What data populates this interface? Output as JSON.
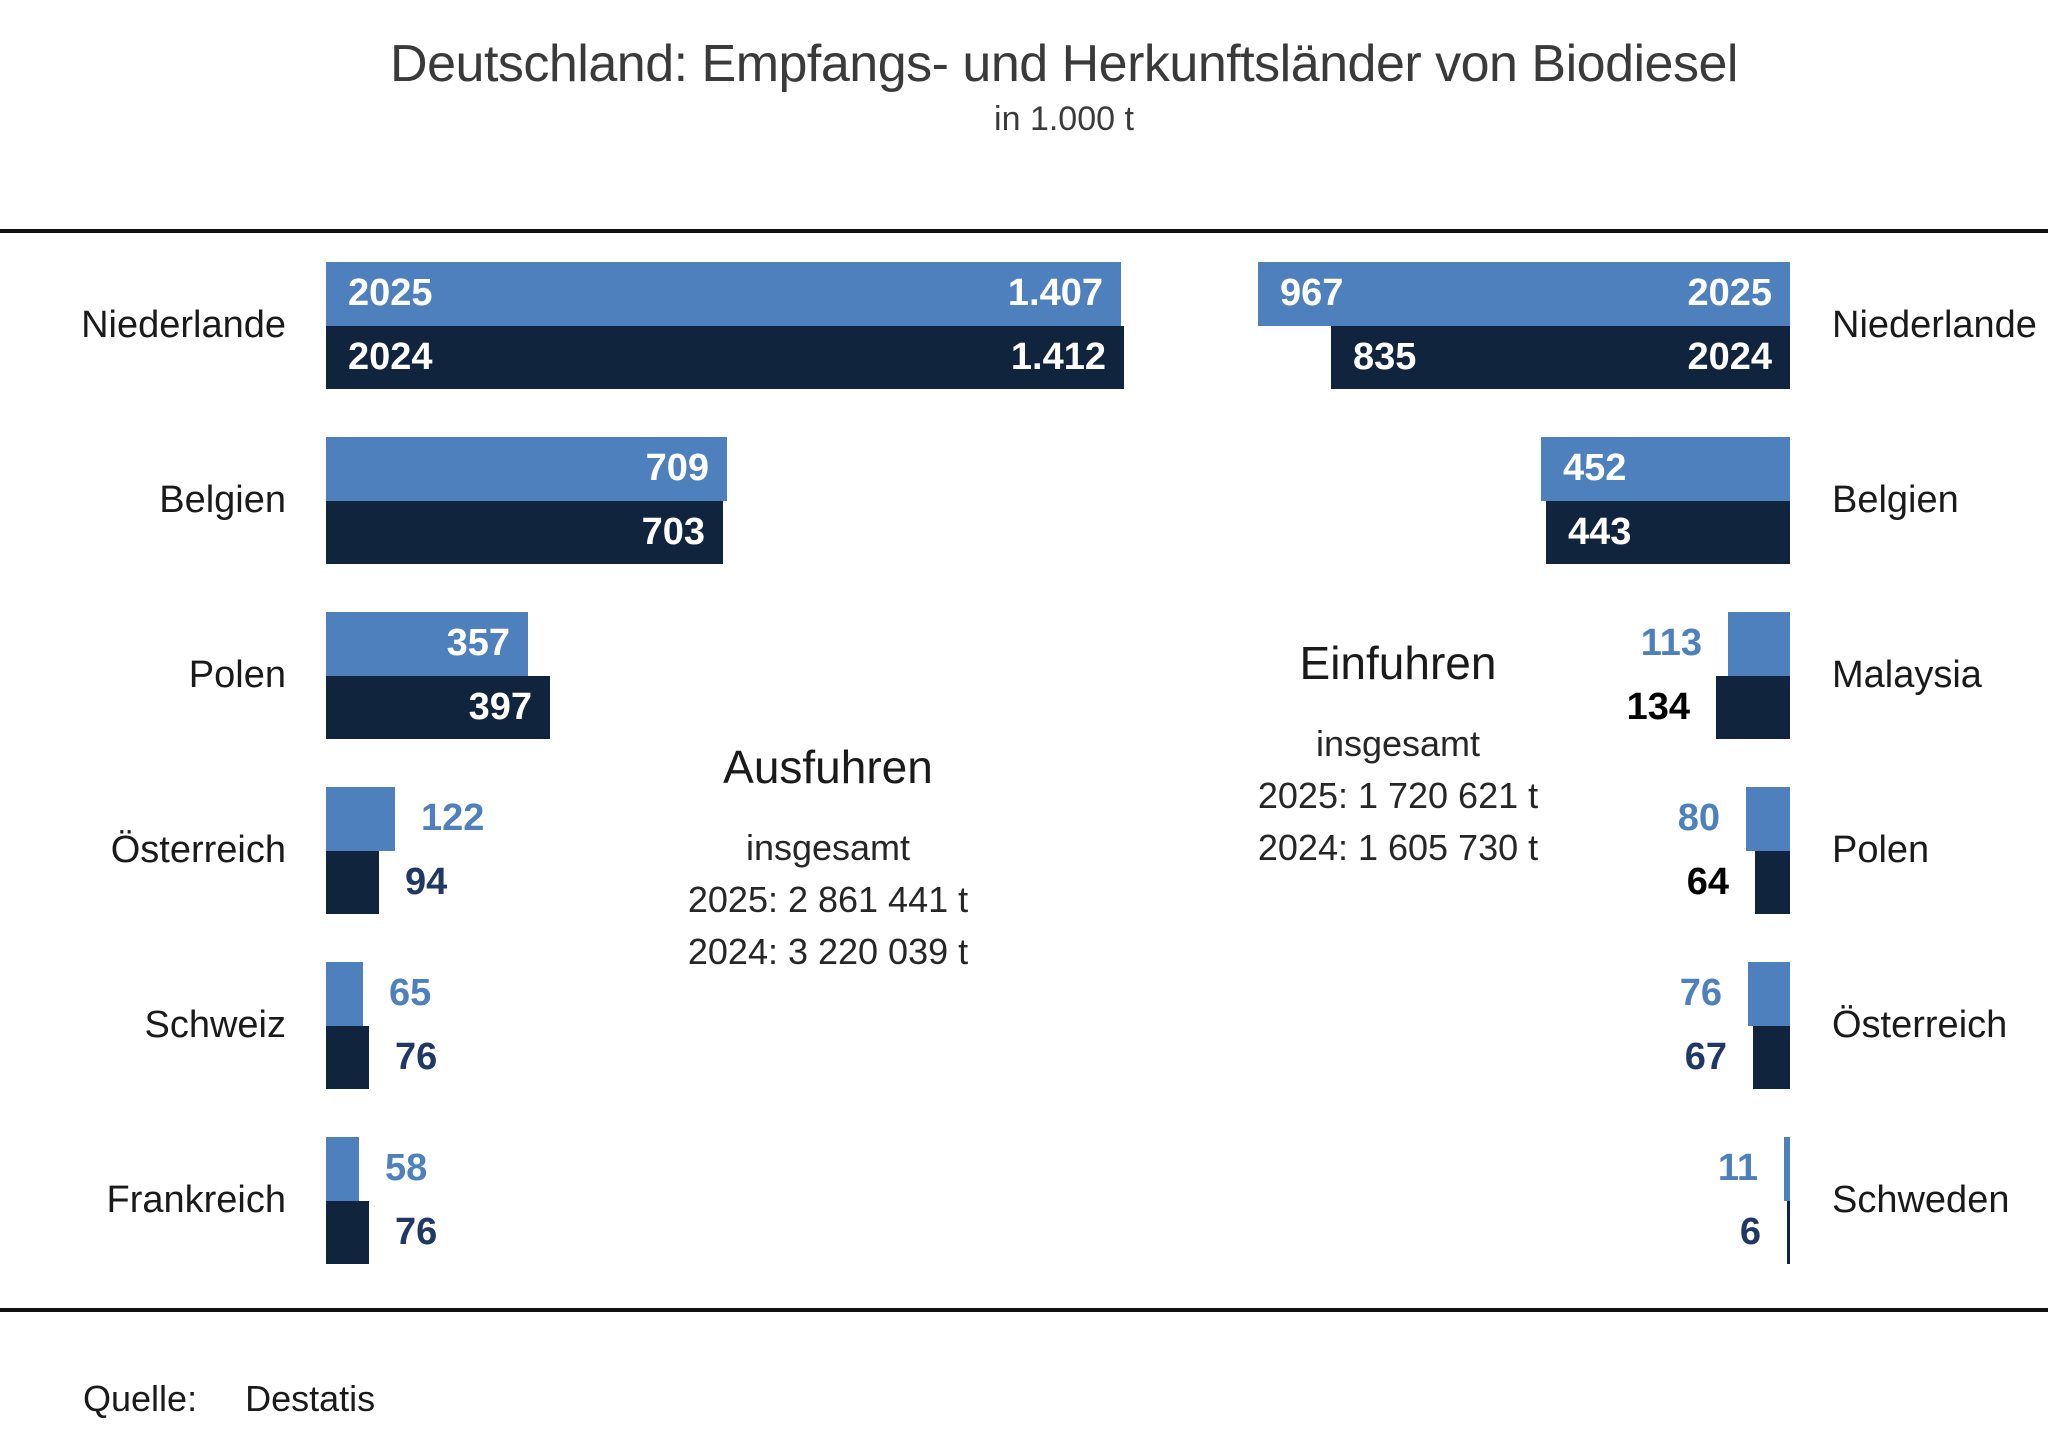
{
  "title": "Deutschland: Empfangs- und Herkunftsländer von Biodiesel",
  "subtitle": "in 1.000 t",
  "source": {
    "label": "Quelle:",
    "value": "Destatis"
  },
  "colors": {
    "bar_2025": "#4e80bd",
    "bar_2024": "#10243e",
    "outside_label_2025": "#4d80bd",
    "outside_label_2024": "#1f3864",
    "inside_label": "#ffffff",
    "text": "#262626"
  },
  "chart_data": [
    {
      "type": "bar",
      "orientation": "horizontal",
      "side": "left",
      "center_title": "Ausfuhren",
      "center_subtitle": "insgesamt",
      "totals": [
        "2025: 2 861 441 t",
        "2024: 3 220 039 t"
      ],
      "unit": "1.000 t",
      "categories": [
        "Niederlande",
        "Belgien",
        "Polen",
        "Österreich",
        "Schweiz",
        "Frankreich"
      ],
      "series": [
        {
          "name": "2025",
          "values": [
            1407,
            709,
            357,
            122,
            65,
            58
          ],
          "labels": [
            "1.407",
            "709",
            "357",
            "122",
            "65",
            "58"
          ]
        },
        {
          "name": "2024",
          "values": [
            1412,
            703,
            397,
            94,
            76,
            76
          ],
          "labels": [
            "1.412",
            "703",
            "397",
            "94",
            "76",
            "76"
          ]
        }
      ]
    },
    {
      "type": "bar",
      "orientation": "horizontal",
      "side": "right",
      "center_title": "Einfuhren",
      "center_subtitle": "insgesamt",
      "totals": [
        "2025: 1 720 621 t",
        "2024: 1 605 730 t"
      ],
      "unit": "1.000 t",
      "categories": [
        "Niederlande",
        "Belgien",
        "Malaysia",
        "Polen",
        "Österreich",
        "Schweden"
      ],
      "series": [
        {
          "name": "2025",
          "values": [
            967,
            452,
            113,
            80,
            76,
            11
          ],
          "labels": [
            "967",
            "452",
            "113",
            "80",
            "76",
            "11"
          ]
        },
        {
          "name": "2024",
          "values": [
            835,
            443,
            134,
            64,
            67,
            6
          ],
          "labels": [
            "835",
            "443",
            "134",
            "64",
            "67",
            "6"
          ],
          "outside_label_colors": [
            null,
            null,
            "#000000",
            "#000000",
            "#1f3864",
            "#1f3864"
          ]
        }
      ]
    }
  ]
}
